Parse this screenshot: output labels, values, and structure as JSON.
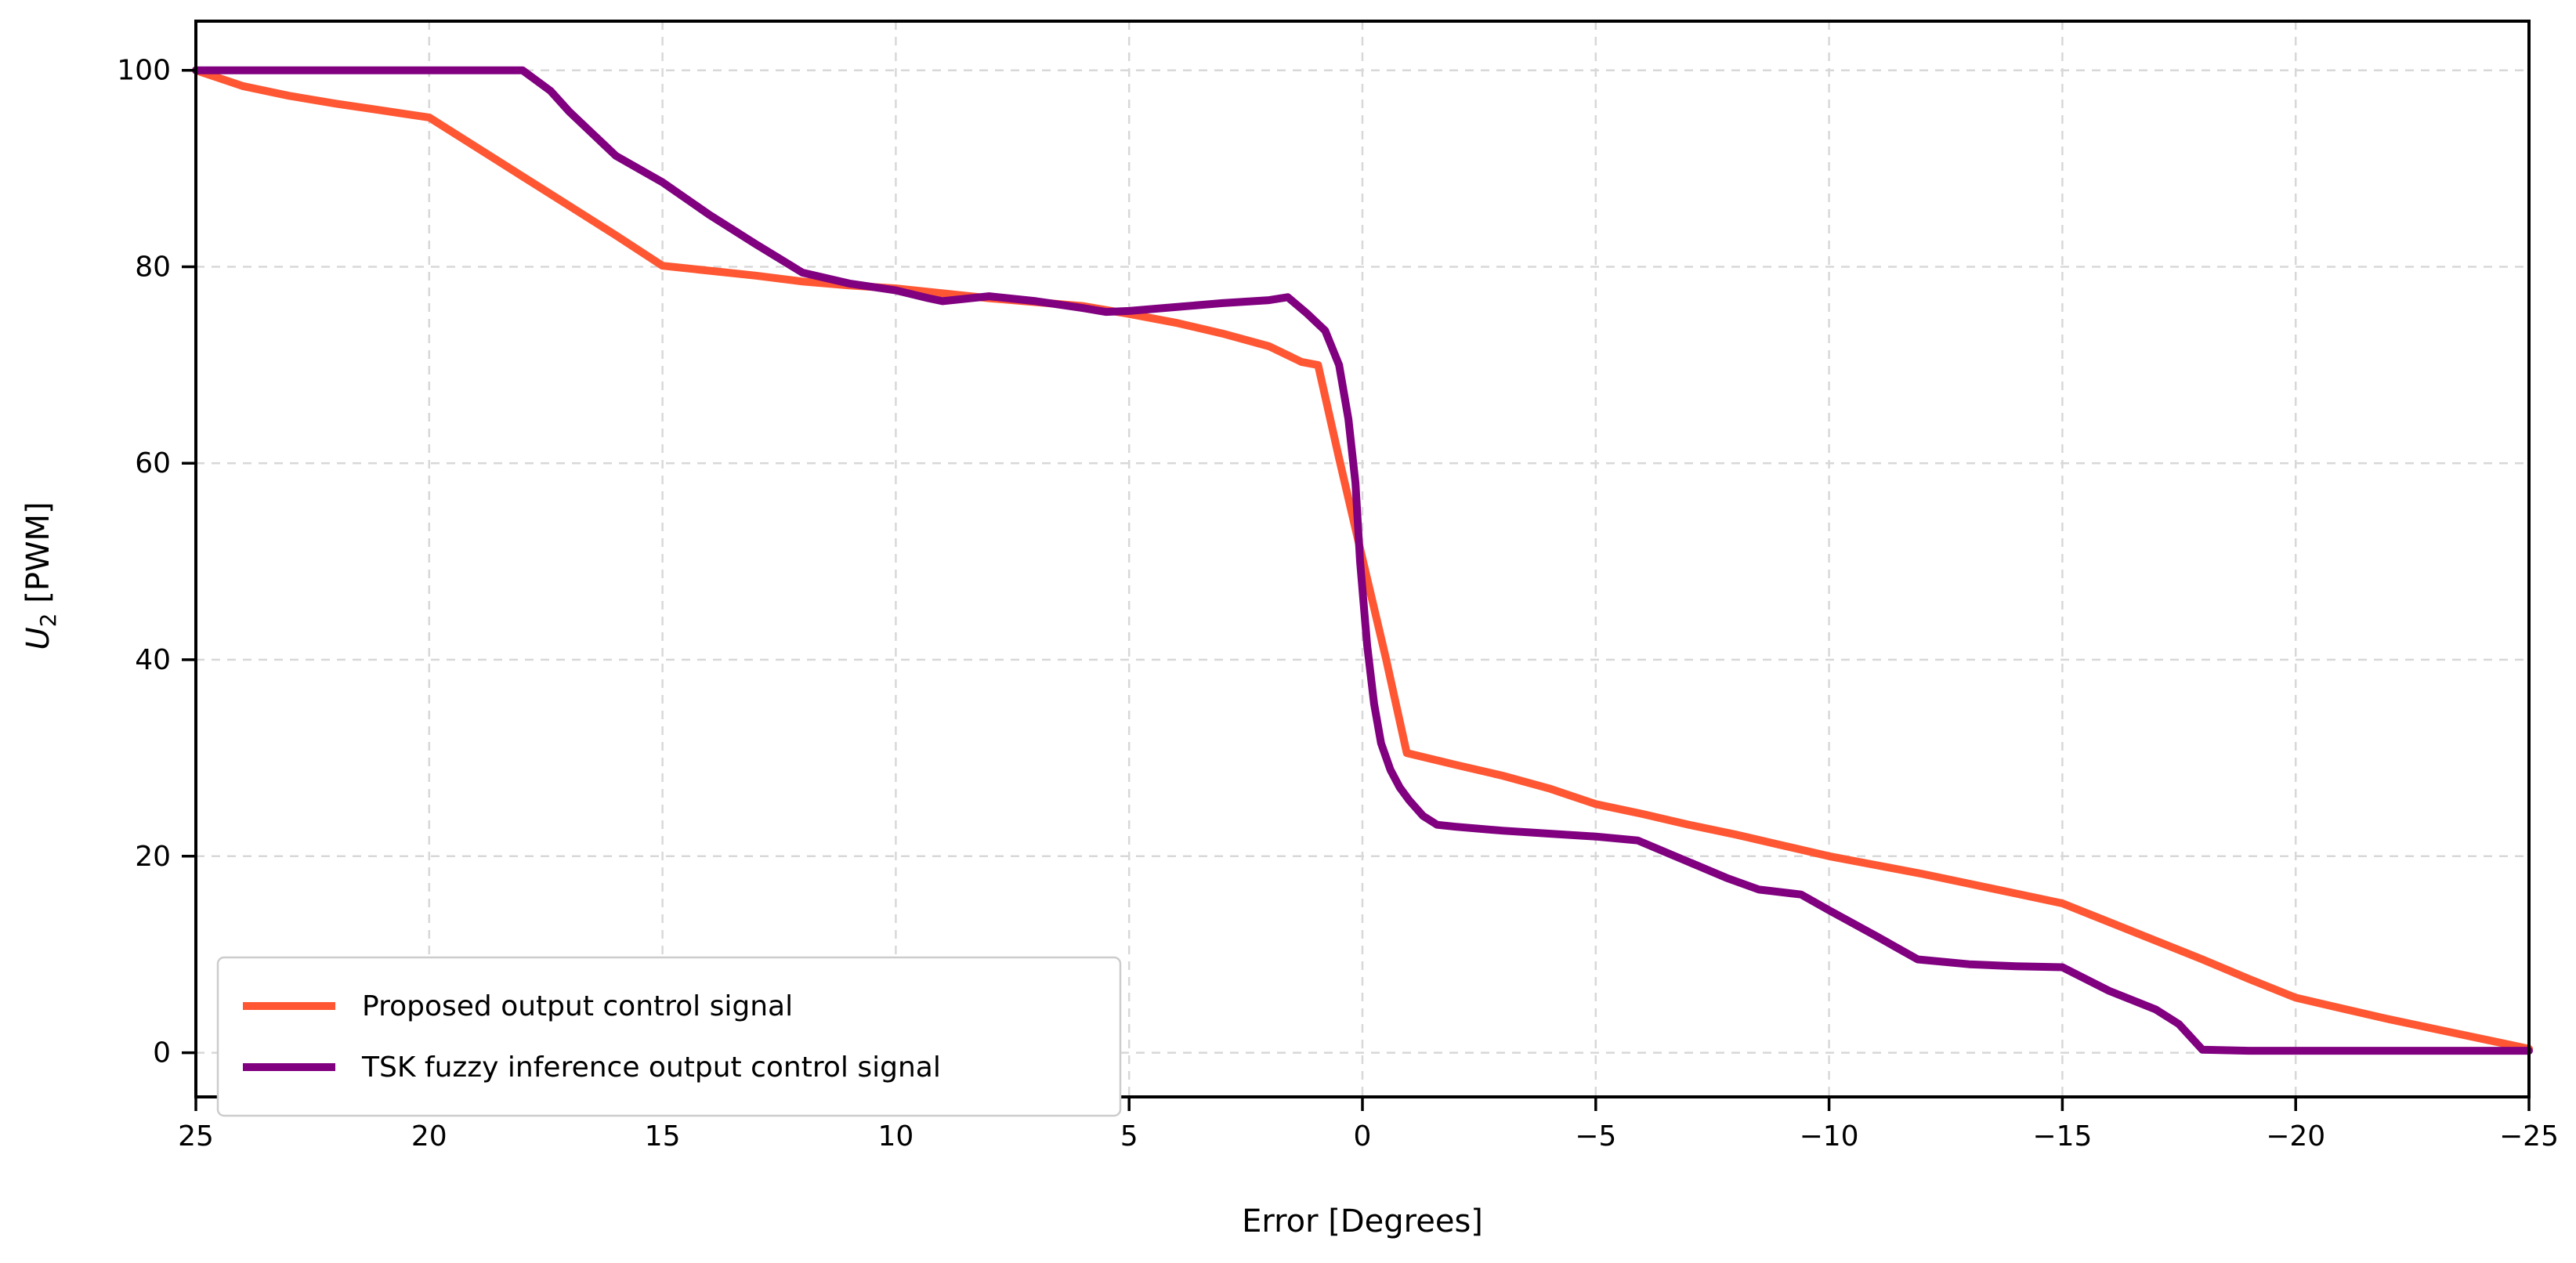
{
  "chart_data": {
    "type": "line",
    "title": "",
    "xlabel": "Error [Degrees]",
    "ylabel": {
      "var": "U",
      "sub": "2",
      "unit": " [PWM]"
    },
    "x_axis_inverted": true,
    "xlim": [
      25,
      -25
    ],
    "ylim": [
      -4.5,
      105
    ],
    "x_ticks": [
      25,
      20,
      15,
      10,
      5,
      0,
      -5,
      -10,
      -15,
      -20,
      -25
    ],
    "x_tick_labels": [
      "25",
      "20",
      "15",
      "10",
      "5",
      "0",
      "−5",
      "−10",
      "−15",
      "−20",
      "−25"
    ],
    "y_ticks": [
      0,
      20,
      40,
      60,
      80,
      100
    ],
    "y_tick_labels": [
      "0",
      "20",
      "40",
      "60",
      "80",
      "100"
    ],
    "grid": true,
    "grid_color": "#d8d8d8",
    "spine_color": "#000000",
    "legend_position": "lower left",
    "series": [
      {
        "name": "Proposed output control signal",
        "color": "#FF5733",
        "points": [
          [
            25,
            100
          ],
          [
            24,
            98.4
          ],
          [
            23,
            97.4
          ],
          [
            22,
            96.6
          ],
          [
            21,
            95.9
          ],
          [
            20,
            95.2
          ],
          [
            19,
            92.2
          ],
          [
            18,
            89.2
          ],
          [
            17,
            86.2
          ],
          [
            16,
            83.2
          ],
          [
            15,
            80.1
          ],
          [
            14,
            79.6
          ],
          [
            13,
            79.1
          ],
          [
            12,
            78.5
          ],
          [
            11,
            78.1
          ],
          [
            10,
            77.8
          ],
          [
            9,
            77.3
          ],
          [
            8,
            76.8
          ],
          [
            7,
            76.4
          ],
          [
            6,
            76
          ],
          [
            5,
            75.2
          ],
          [
            4,
            74.3
          ],
          [
            3,
            73.2
          ],
          [
            2,
            71.9
          ],
          [
            1.3,
            70.3
          ],
          [
            0.95,
            70
          ],
          [
            0.5,
            60.5
          ],
          [
            0,
            50.3
          ],
          [
            -0.5,
            40.2
          ],
          [
            -0.95,
            30.5
          ],
          [
            -2,
            29.3
          ],
          [
            -3,
            28.2
          ],
          [
            -4,
            26.9
          ],
          [
            -5,
            25.3
          ],
          [
            -6,
            24.3
          ],
          [
            -7,
            23.2
          ],
          [
            -8,
            22.2
          ],
          [
            -9,
            21.1
          ],
          [
            -10,
            20
          ],
          [
            -11,
            19.1
          ],
          [
            -12,
            18.2
          ],
          [
            -13,
            17.2
          ],
          [
            -14,
            16.2
          ],
          [
            -15,
            15.2
          ],
          [
            -16,
            13.3
          ],
          [
            -17,
            11.4
          ],
          [
            -18,
            9.5
          ],
          [
            -19,
            7.5
          ],
          [
            -20,
            5.6
          ],
          [
            -21,
            4.5
          ],
          [
            -22,
            3.4
          ],
          [
            -23,
            2.4
          ],
          [
            -24,
            1.4
          ],
          [
            -25,
            0.4
          ]
        ]
      },
      {
        "name": "TSK fuzzy inference output control signal",
        "color": "#800080",
        "points": [
          [
            25,
            100
          ],
          [
            18,
            100
          ],
          [
            17.4,
            97.9
          ],
          [
            17,
            95.8
          ],
          [
            16,
            91.3
          ],
          [
            15,
            88.6
          ],
          [
            14,
            85.3
          ],
          [
            13,
            82.3
          ],
          [
            12,
            79.4
          ],
          [
            11,
            78.3
          ],
          [
            10,
            77.6
          ],
          [
            9.3,
            76.8
          ],
          [
            9,
            76.5
          ],
          [
            8,
            77
          ],
          [
            7,
            76.5
          ],
          [
            6,
            75.8
          ],
          [
            5.5,
            75.4
          ],
          [
            5,
            75.5
          ],
          [
            4,
            75.9
          ],
          [
            3,
            76.3
          ],
          [
            2,
            76.6
          ],
          [
            1.6,
            76.9
          ],
          [
            1.2,
            75.3
          ],
          [
            0.8,
            73.5
          ],
          [
            0.5,
            70
          ],
          [
            0.3,
            64.5
          ],
          [
            0.15,
            58
          ],
          [
            0.05,
            50
          ],
          [
            -0.1,
            41.5
          ],
          [
            -0.25,
            35.5
          ],
          [
            -0.4,
            31.5
          ],
          [
            -0.6,
            28.8
          ],
          [
            -0.8,
            27
          ],
          [
            -1,
            25.7
          ],
          [
            -1.3,
            24.1
          ],
          [
            -1.6,
            23.2
          ],
          [
            -2,
            23
          ],
          [
            -3,
            22.6
          ],
          [
            -4,
            22.3
          ],
          [
            -5,
            22
          ],
          [
            -5.9,
            21.6
          ],
          [
            -7,
            19.4
          ],
          [
            -7.8,
            17.8
          ],
          [
            -8.5,
            16.6
          ],
          [
            -9.4,
            16.1
          ],
          [
            -10,
            14.5
          ],
          [
            -11,
            11.9
          ],
          [
            -11.9,
            9.5
          ],
          [
            -13,
            9
          ],
          [
            -14,
            8.8
          ],
          [
            -15,
            8.7
          ],
          [
            -16,
            6.3
          ],
          [
            -17,
            4.4
          ],
          [
            -17.5,
            2.9
          ],
          [
            -18,
            0.3
          ],
          [
            -19,
            0.2
          ],
          [
            -25,
            0.2
          ]
        ]
      }
    ]
  }
}
